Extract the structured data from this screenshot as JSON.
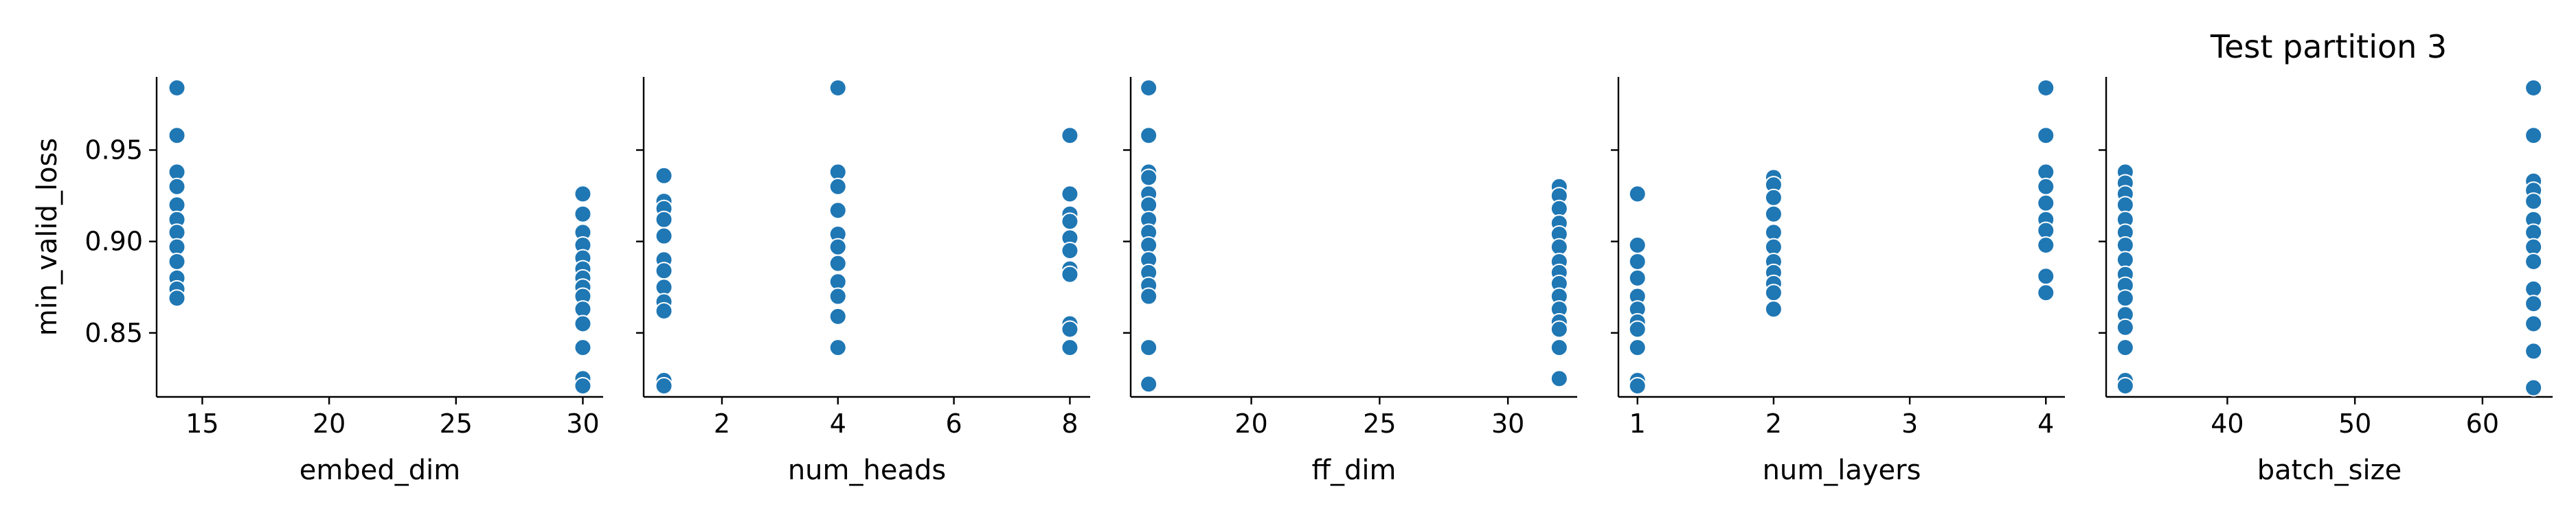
{
  "chart_data": {
    "type": "scatter",
    "title": "Test partition 3",
    "ylabel": "min_valid_loss",
    "ylim": [
      0.815,
      0.99
    ],
    "yticks": [
      0.85,
      0.9,
      0.95
    ],
    "ytick_labels": [
      "0.85",
      "0.90",
      "0.95"
    ],
    "marker_color": "#1f77b4",
    "panels": [
      {
        "xlabel": "embed_dim",
        "xlim": [
          13.2,
          30.8
        ],
        "xticks": [
          15,
          20,
          25,
          30
        ],
        "xtick_labels": [
          "15",
          "20",
          "25",
          "30"
        ],
        "points": [
          [
            14,
            0.984
          ],
          [
            14,
            0.958
          ],
          [
            14,
            0.938
          ],
          [
            14,
            0.93
          ],
          [
            14,
            0.92
          ],
          [
            14,
            0.912
          ],
          [
            14,
            0.905
          ],
          [
            14,
            0.897
          ],
          [
            14,
            0.889
          ],
          [
            14,
            0.88
          ],
          [
            14,
            0.874
          ],
          [
            14,
            0.869
          ],
          [
            30,
            0.926
          ],
          [
            30,
            0.915
          ],
          [
            30,
            0.905
          ],
          [
            30,
            0.898
          ],
          [
            30,
            0.891
          ],
          [
            30,
            0.885
          ],
          [
            30,
            0.88
          ],
          [
            30,
            0.875
          ],
          [
            30,
            0.87
          ],
          [
            30,
            0.863
          ],
          [
            30,
            0.855
          ],
          [
            30,
            0.842
          ],
          [
            30,
            0.825
          ],
          [
            30,
            0.821
          ]
        ]
      },
      {
        "xlabel": "num_heads",
        "xlim": [
          0.65,
          8.35
        ],
        "xticks": [
          2,
          4,
          6,
          8
        ],
        "xtick_labels": [
          "2",
          "4",
          "6",
          "8"
        ],
        "points": [
          [
            1,
            0.936
          ],
          [
            1,
            0.922
          ],
          [
            1,
            0.918
          ],
          [
            1,
            0.912
          ],
          [
            1,
            0.903
          ],
          [
            1,
            0.89
          ],
          [
            1,
            0.884
          ],
          [
            1,
            0.875
          ],
          [
            1,
            0.867
          ],
          [
            1,
            0.862
          ],
          [
            1,
            0.824
          ],
          [
            1,
            0.821
          ],
          [
            4,
            0.984
          ],
          [
            4,
            0.938
          ],
          [
            4,
            0.93
          ],
          [
            4,
            0.917
          ],
          [
            4,
            0.904
          ],
          [
            4,
            0.897
          ],
          [
            4,
            0.888
          ],
          [
            4,
            0.878
          ],
          [
            4,
            0.87
          ],
          [
            4,
            0.859
          ],
          [
            4,
            0.842
          ],
          [
            8,
            0.958
          ],
          [
            8,
            0.926
          ],
          [
            8,
            0.915
          ],
          [
            8,
            0.911
          ],
          [
            8,
            0.902
          ],
          [
            8,
            0.895
          ],
          [
            8,
            0.885
          ],
          [
            8,
            0.882
          ],
          [
            8,
            0.855
          ],
          [
            8,
            0.852
          ],
          [
            8,
            0.842
          ]
        ]
      },
      {
        "xlabel": "ff_dim",
        "xlim": [
          15.3,
          32.7
        ],
        "xticks": [
          20,
          25,
          30
        ],
        "xtick_labels": [
          "20",
          "25",
          "30"
        ],
        "points": [
          [
            16,
            0.984
          ],
          [
            16,
            0.958
          ],
          [
            16,
            0.938
          ],
          [
            16,
            0.935
          ],
          [
            16,
            0.926
          ],
          [
            16,
            0.92
          ],
          [
            16,
            0.912
          ],
          [
            16,
            0.905
          ],
          [
            16,
            0.898
          ],
          [
            16,
            0.89
          ],
          [
            16,
            0.883
          ],
          [
            16,
            0.876
          ],
          [
            16,
            0.87
          ],
          [
            16,
            0.842
          ],
          [
            16,
            0.822
          ],
          [
            32,
            0.93
          ],
          [
            32,
            0.925
          ],
          [
            32,
            0.918
          ],
          [
            32,
            0.91
          ],
          [
            32,
            0.904
          ],
          [
            32,
            0.897
          ],
          [
            32,
            0.889
          ],
          [
            32,
            0.883
          ],
          [
            32,
            0.877
          ],
          [
            32,
            0.87
          ],
          [
            32,
            0.863
          ],
          [
            32,
            0.856
          ],
          [
            32,
            0.852
          ],
          [
            32,
            0.842
          ],
          [
            32,
            0.825
          ]
        ]
      },
      {
        "xlabel": "num_layers",
        "xlim": [
          0.86,
          4.14
        ],
        "xticks": [
          1,
          2,
          3,
          4
        ],
        "xtick_labels": [
          "1",
          "2",
          "3",
          "4"
        ],
        "points": [
          [
            1,
            0.926
          ],
          [
            1,
            0.898
          ],
          [
            1,
            0.889
          ],
          [
            1,
            0.88
          ],
          [
            1,
            0.87
          ],
          [
            1,
            0.863
          ],
          [
            1,
            0.856
          ],
          [
            1,
            0.852
          ],
          [
            1,
            0.842
          ],
          [
            1,
            0.824
          ],
          [
            1,
            0.821
          ],
          [
            2,
            0.935
          ],
          [
            2,
            0.931
          ],
          [
            2,
            0.924
          ],
          [
            2,
            0.915
          ],
          [
            2,
            0.905
          ],
          [
            2,
            0.897
          ],
          [
            2,
            0.889
          ],
          [
            2,
            0.883
          ],
          [
            2,
            0.877
          ],
          [
            2,
            0.872
          ],
          [
            2,
            0.863
          ],
          [
            4,
            0.984
          ],
          [
            4,
            0.958
          ],
          [
            4,
            0.938
          ],
          [
            4,
            0.93
          ],
          [
            4,
            0.921
          ],
          [
            4,
            0.912
          ],
          [
            4,
            0.906
          ],
          [
            4,
            0.898
          ],
          [
            4,
            0.881
          ],
          [
            4,
            0.872
          ]
        ]
      },
      {
        "xlabel": "batch_size",
        "xlim": [
          30.5,
          65.5
        ],
        "xticks": [
          40,
          50,
          60
        ],
        "xtick_labels": [
          "40",
          "50",
          "60"
        ],
        "points": [
          [
            32,
            0.938
          ],
          [
            32,
            0.932
          ],
          [
            32,
            0.926
          ],
          [
            32,
            0.92
          ],
          [
            32,
            0.912
          ],
          [
            32,
            0.905
          ],
          [
            32,
            0.898
          ],
          [
            32,
            0.89
          ],
          [
            32,
            0.882
          ],
          [
            32,
            0.876
          ],
          [
            32,
            0.869
          ],
          [
            32,
            0.86
          ],
          [
            32,
            0.853
          ],
          [
            32,
            0.842
          ],
          [
            32,
            0.824
          ],
          [
            32,
            0.821
          ],
          [
            64,
            0.984
          ],
          [
            64,
            0.958
          ],
          [
            64,
            0.933
          ],
          [
            64,
            0.928
          ],
          [
            64,
            0.922
          ],
          [
            64,
            0.912
          ],
          [
            64,
            0.905
          ],
          [
            64,
            0.897
          ],
          [
            64,
            0.889
          ],
          [
            64,
            0.874
          ],
          [
            64,
            0.866
          ],
          [
            64,
            0.855
          ],
          [
            64,
            0.84
          ],
          [
            64,
            0.82
          ]
        ]
      }
    ]
  }
}
